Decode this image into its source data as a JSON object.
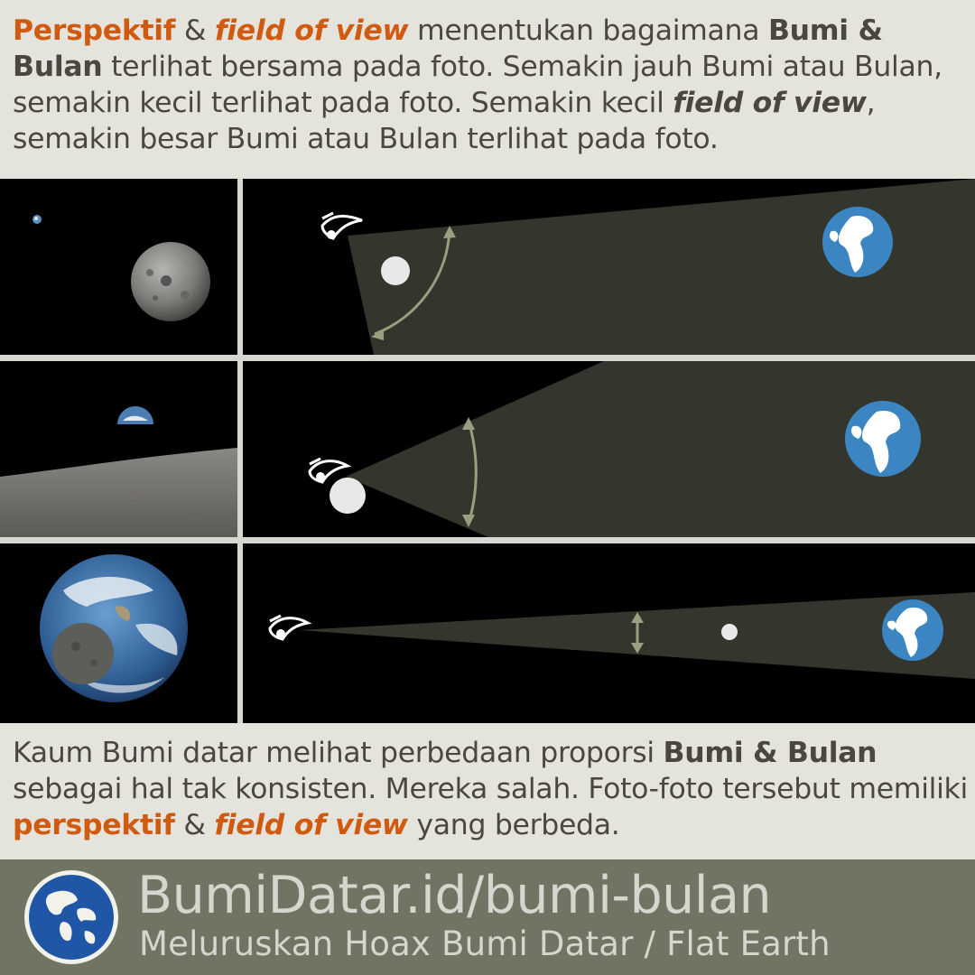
{
  "top_text": {
    "perspektif": "Perspektif",
    "amp1": " & ",
    "fov": "field of view",
    "mid1": " menentukan bagaimana ",
    "bumi_bulan": "Bumi & Bulan",
    "rest1": " terlihat bersama pada foto. Semakin jauh Bumi atau Bulan, semakin kecil terlihat pada foto. Semakin kecil ",
    "fov2": "field of view",
    "rest2": ", semakin besar Bumi atau Bulan terlihat pada foto."
  },
  "bottom_text": {
    "start": "Kaum Bumi datar melihat perbedaan proporsi ",
    "bumi_bulan": "Bumi & Bulan",
    "mid": " sebagai hal tak konsisten. Mereka salah. Foto-foto tersebut memiliki ",
    "perspektif": "perspektif",
    "amp": " & ",
    "fov": "field of view",
    "end": " yang berbeda."
  },
  "footer": {
    "url": "BumiDatar.id/bumi-bulan",
    "tagline": "Meluruskan Hoax Bumi Datar / Flat Earth"
  },
  "colors": {
    "accent_orange": "#d05a10",
    "text": "#4a4640",
    "background": "#e5e4dc",
    "footer": "#6f7562",
    "fov_cone": "#34352d",
    "arrow": "#9a9f80",
    "earth_ocean": "#3b86c2"
  },
  "icons": [
    "eye-icon",
    "earth-icon",
    "moon-icon",
    "fov-angle-arrow-icon",
    "globe-logo-icon"
  ]
}
